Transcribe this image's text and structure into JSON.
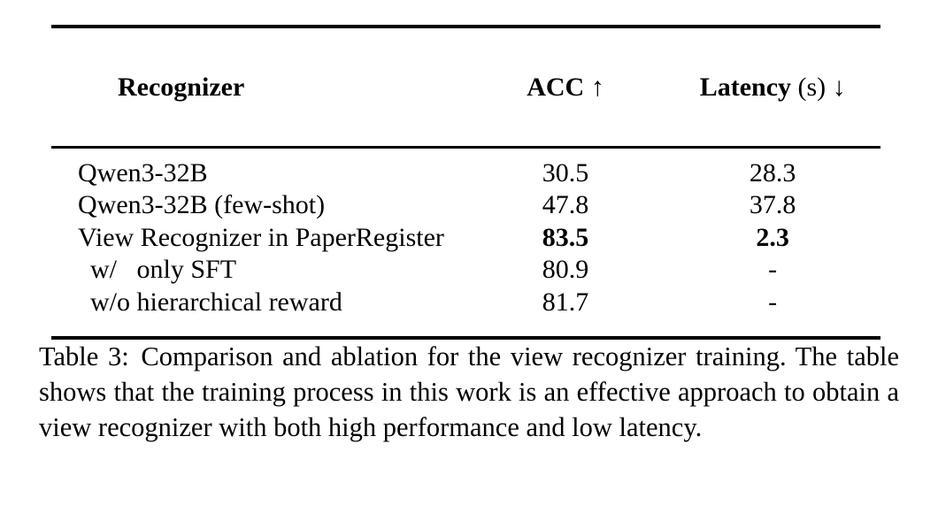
{
  "page": {
    "background_color": "#ffffff",
    "text_color": "#000000"
  },
  "table": {
    "columns": [
      {
        "bold": "Recognizer",
        "rest": ""
      },
      {
        "bold": "ACC",
        "rest": " ↑"
      },
      {
        "bold": "Latency",
        "rest": " (s) ↓"
      }
    ],
    "rows": [
      {
        "name": "Qwen3-32B",
        "acc": "30.5",
        "latency": "28.3",
        "values_bold": false,
        "indent": false
      },
      {
        "name": "Qwen3-32B (few-shot)",
        "acc": "47.8",
        "latency": "37.8",
        "values_bold": false,
        "indent": false
      },
      {
        "name": "View Recognizer in PaperRegister",
        "acc": "83.5",
        "latency": "2.3",
        "values_bold": true,
        "indent": false
      },
      {
        "name": "w/   only SFT",
        "acc": "80.9",
        "latency": "-",
        "values_bold": false,
        "indent": true
      },
      {
        "name": "w/o hierarchical reward",
        "acc": "81.7",
        "latency": "-",
        "values_bold": false,
        "indent": true
      }
    ]
  },
  "caption": {
    "label": "Table 3:",
    "text": "Comparison and ablation for the view recognizer training. The table shows that the training process in this work is an effective approach to obtain a view recognizer with both high performance and low latency."
  }
}
